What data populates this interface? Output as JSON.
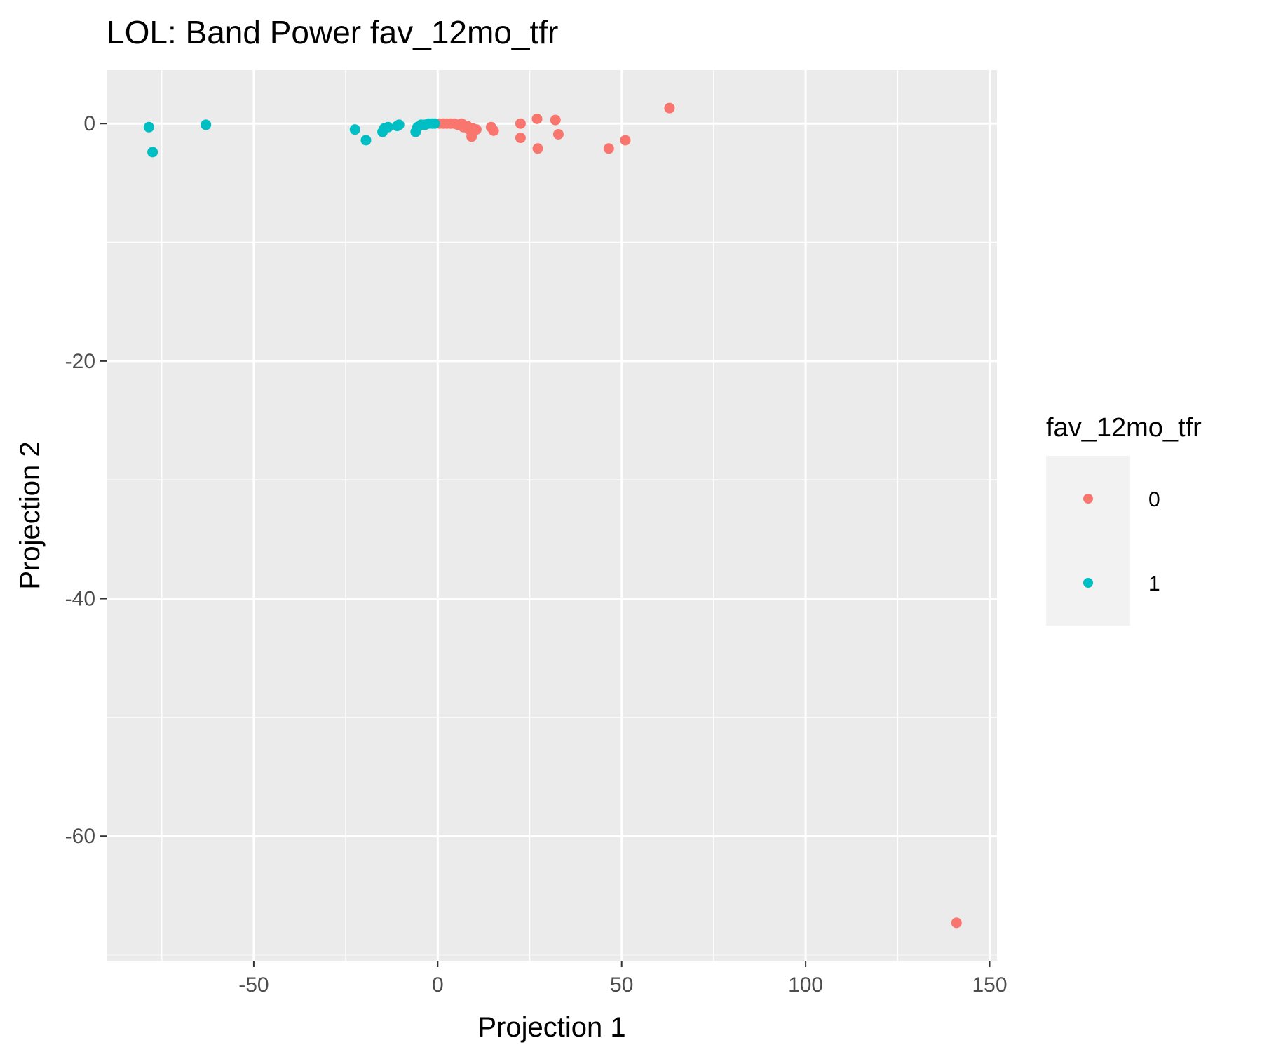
{
  "chart_data": {
    "type": "scatter",
    "title": "LOL: Band Power fav_12mo_tfr",
    "xlabel": "Projection 1",
    "ylabel": "Projection 2",
    "xlim": [
      -90,
      152
    ],
    "ylim": [
      -70.5,
      4.5
    ],
    "x_ticks": [
      -50,
      0,
      50,
      100,
      150
    ],
    "y_ticks": [
      0,
      -20,
      -40,
      -60
    ],
    "x_tick_labels": [
      "-50",
      "0",
      "50",
      "100",
      "150"
    ],
    "y_tick_labels": [
      "0",
      "-20",
      "-40",
      "-60"
    ],
    "grid": true,
    "legend": {
      "title": "fav_12mo_tfr",
      "position": "right",
      "entries": [
        "0",
        "1"
      ]
    },
    "series": [
      {
        "name": "0",
        "color": "#F8766D",
        "points": [
          [
            0.5,
            0
          ],
          [
            1.5,
            0
          ],
          [
            2.5,
            0
          ],
          [
            3.5,
            0
          ],
          [
            4.5,
            0
          ],
          [
            5.5,
            -0.1
          ],
          [
            6.5,
            0
          ],
          [
            7.0,
            -0.3
          ],
          [
            8.0,
            -0.2
          ],
          [
            8.5,
            -0.5
          ],
          [
            9.5,
            -0.4
          ],
          [
            9.2,
            -1.1
          ],
          [
            10.5,
            -0.5
          ],
          [
            14.5,
            -0.3
          ],
          [
            15.2,
            -0.6
          ],
          [
            22.5,
            0
          ],
          [
            22.5,
            -1.2
          ],
          [
            27.0,
            0.4
          ],
          [
            27.2,
            -2.1
          ],
          [
            32.0,
            0.3
          ],
          [
            32.8,
            -0.9
          ],
          [
            46.5,
            -2.1
          ],
          [
            51.0,
            -1.4
          ],
          [
            63.0,
            1.3
          ],
          [
            141.0,
            -67.3
          ]
        ]
      },
      {
        "name": "1",
        "color": "#00BFC4",
        "points": [
          [
            -78.5,
            -0.3
          ],
          [
            -77.5,
            -2.4
          ],
          [
            -63.0,
            -0.1
          ],
          [
            -22.5,
            -0.5
          ],
          [
            -19.5,
            -1.4
          ],
          [
            -15.0,
            -0.7
          ],
          [
            -14.5,
            -0.4
          ],
          [
            -13.5,
            -0.3
          ],
          [
            -11.0,
            -0.2
          ],
          [
            -10.5,
            -0.1
          ],
          [
            -6.0,
            -0.7
          ],
          [
            -5.5,
            -0.3
          ],
          [
            -4.5,
            -0.1
          ],
          [
            -3.5,
            -0.1
          ],
          [
            -2.5,
            0
          ],
          [
            -1.5,
            0
          ],
          [
            -0.8,
            0
          ]
        ]
      }
    ]
  }
}
